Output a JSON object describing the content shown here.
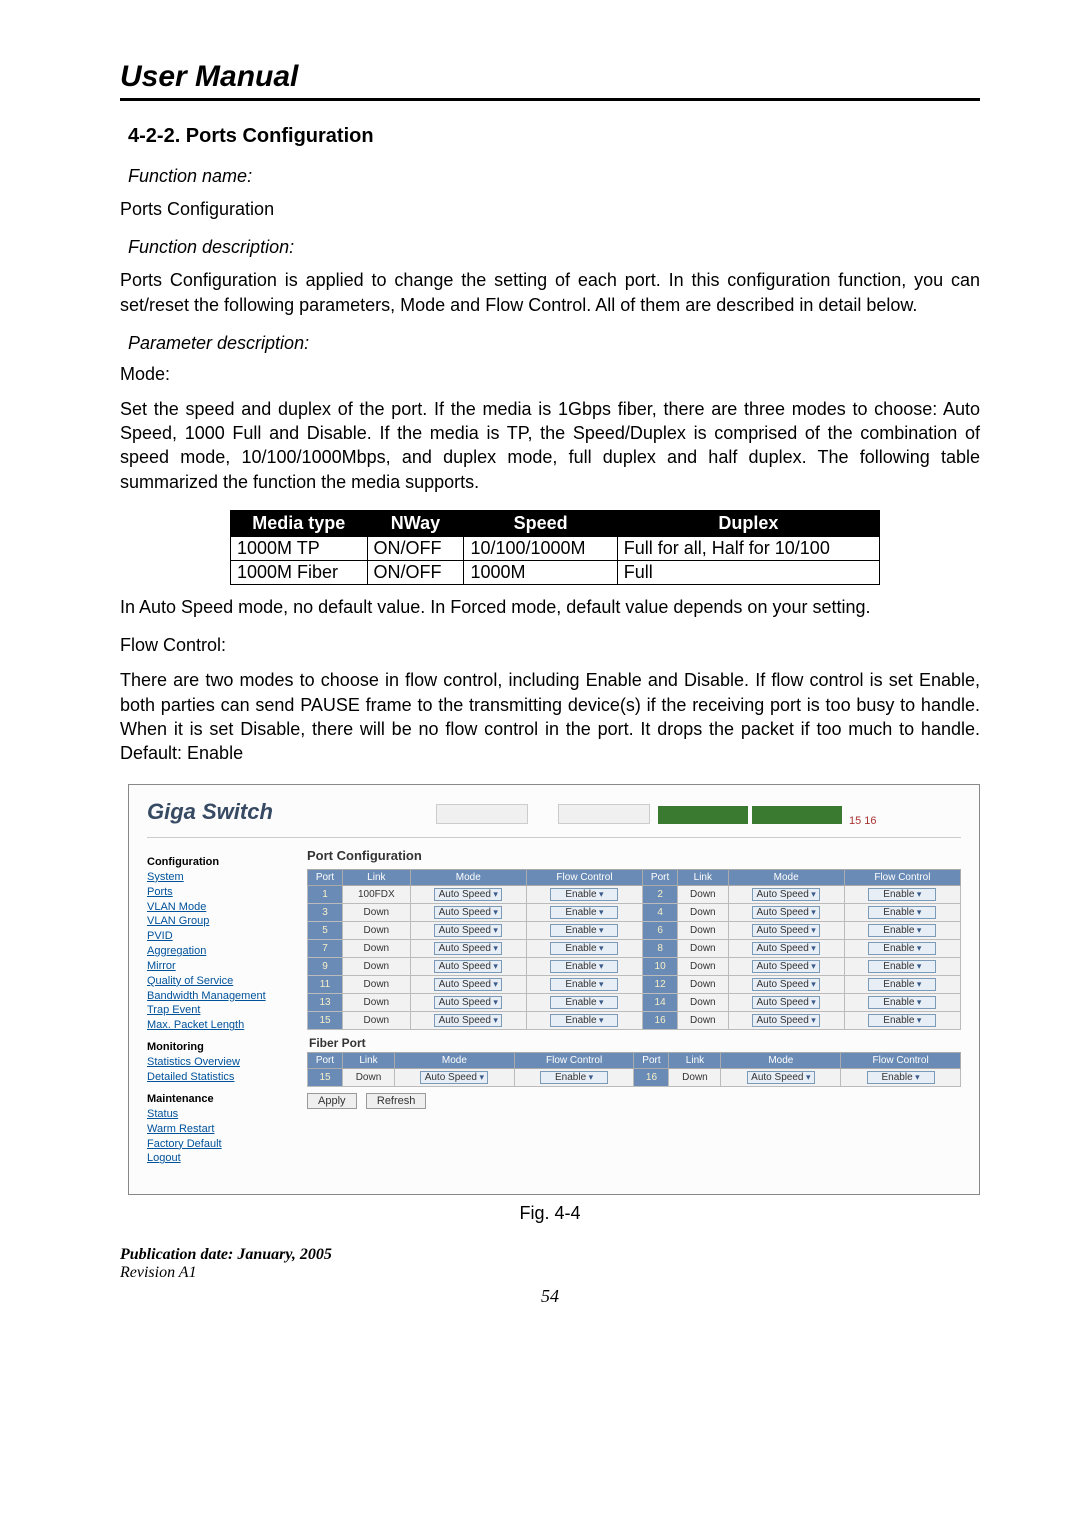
{
  "page_title": "User Manual",
  "section_number": "4-2-2. Ports Configuration",
  "func_name_label": "Function name:",
  "func_name_value": "Ports Configuration",
  "func_desc_label": "Function description:",
  "func_desc_value": "Ports Configuration is applied to change the setting of each port. In this configuration function, you can set/reset the following parameters, Mode and Flow Control. All of them are described in detail below.",
  "param_label": "Parameter description:",
  "mode_label": "Mode:",
  "mode_para": "Set the speed and duplex of the port. If the media is 1Gbps fiber, there are three modes to choose: Auto Speed, 1000 Full and Disable. If the media is TP, the Speed/Duplex is comprised of the combination of speed mode, 10/100/1000Mbps, and duplex mode, full duplex and half duplex. The following table summarized the function the media supports.",
  "media_table": {
    "headers": [
      "Media type",
      "NWay",
      "Speed",
      "Duplex"
    ],
    "rows": [
      [
        "1000M TP",
        "ON/OFF",
        "10/100/1000M",
        "Full for all, Half for 10/100"
      ],
      [
        "1000M Fiber",
        "ON/OFF",
        "1000M",
        "Full"
      ]
    ]
  },
  "mode_para2": "In Auto Speed mode, no default value. In Forced mode, default value depends on your setting.",
  "flow_label": "Flow Control:",
  "flow_para": "There are two modes to choose in flow control, including Enable and Disable. If flow control is set Enable, both parties can send PAUSE frame to the transmitting device(s) if the receiving port is too busy to handle. When it is set Disable, there will be no flow control in the port. It drops the packet if too much to handle.  Default: Enable",
  "screenshot": {
    "brand": "Giga Switch",
    "sidebar": {
      "configuration_label": "Configuration",
      "config_links": [
        "System",
        "Ports",
        "VLAN Mode",
        "VLAN Group",
        "PVID",
        "Aggregation",
        "Mirror",
        "Quality of Service",
        "Bandwidth Management",
        "Trap Event",
        "Max. Packet Length"
      ],
      "monitoring_label": "Monitoring",
      "monitoring_links": [
        "Statistics Overview",
        "Detailed Statistics"
      ],
      "maintenance_label": "Maintenance",
      "maintenance_links": [
        "Status",
        "Warm Restart",
        "Factory Default",
        "Logout"
      ]
    },
    "config_title": "Port Configuration",
    "table_headers": [
      "Port",
      "Link",
      "Mode",
      "Flow Control",
      "Port",
      "Link",
      "Mode",
      "Flow Control"
    ],
    "rows": [
      {
        "p1": "1",
        "l1": "100FDX",
        "m1": "Auto Speed",
        "f1": "Enable",
        "p2": "2",
        "l2": "Down",
        "m2": "Auto Speed",
        "f2": "Enable"
      },
      {
        "p1": "3",
        "l1": "Down",
        "m1": "Auto Speed",
        "f1": "Enable",
        "p2": "4",
        "l2": "Down",
        "m2": "Auto Speed",
        "f2": "Enable"
      },
      {
        "p1": "5",
        "l1": "Down",
        "m1": "Auto Speed",
        "f1": "Enable",
        "p2": "6",
        "l2": "Down",
        "m2": "Auto Speed",
        "f2": "Enable"
      },
      {
        "p1": "7",
        "l1": "Down",
        "m1": "Auto Speed",
        "f1": "Enable",
        "p2": "8",
        "l2": "Down",
        "m2": "Auto Speed",
        "f2": "Enable"
      },
      {
        "p1": "9",
        "l1": "Down",
        "m1": "Auto Speed",
        "f1": "Enable",
        "p2": "10",
        "l2": "Down",
        "m2": "Auto Speed",
        "f2": "Enable"
      },
      {
        "p1": "11",
        "l1": "Down",
        "m1": "Auto Speed",
        "f1": "Enable",
        "p2": "12",
        "l2": "Down",
        "m2": "Auto Speed",
        "f2": "Enable"
      },
      {
        "p1": "13",
        "l1": "Down",
        "m1": "Auto Speed",
        "f1": "Enable",
        "p2": "14",
        "l2": "Down",
        "m2": "Auto Speed",
        "f2": "Enable"
      },
      {
        "p1": "15",
        "l1": "Down",
        "m1": "Auto Speed",
        "f1": "Enable",
        "p2": "16",
        "l2": "Down",
        "m2": "Auto Speed",
        "f2": "Enable"
      }
    ],
    "fiber_label": "Fiber Port",
    "fiber_row": {
      "p1": "15",
      "l1": "Down",
      "m1": "Auto Speed",
      "f1": "Enable",
      "p2": "16",
      "l2": "Down",
      "m2": "Auto Speed",
      "f2": "Enable"
    },
    "btn_apply": "Apply",
    "btn_refresh": "Refresh"
  },
  "fig_caption": "Fig. 4-4",
  "pub_date": "Publication date: January, 2005",
  "revision": "Revision A1",
  "page_number": "54"
}
